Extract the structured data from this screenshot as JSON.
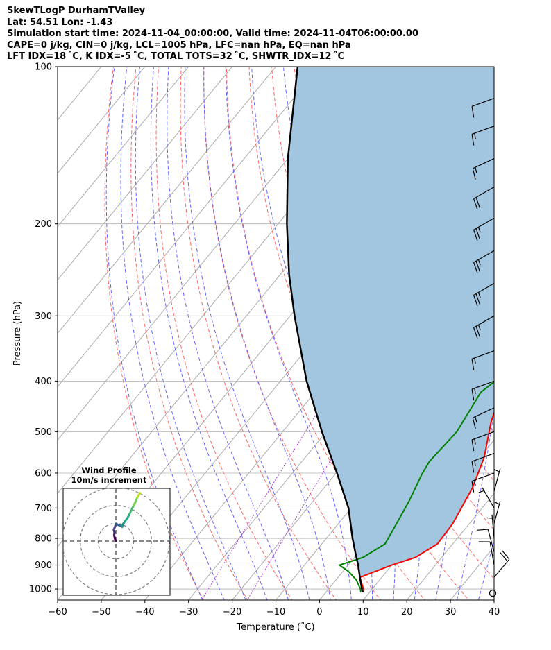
{
  "header": {
    "line1": "SkewTLogP DurhamTValley",
    "line2": "Lat: 54.51   Lon: -1.43",
    "line3": "Simulation start time: 2024-11-04_00:00:00, Valid time: 2024-11-04T06:00:00.00",
    "line4": "CAPE=0 j/kg, CIN=0 j/kg, LCL=1005 hPa, LFC=nan hPa, EQ=nan hPa",
    "line5": "LFT IDX=18 ˚C, K IDX=-5 ˚C, TOTAL TOTS=32 ˚C, SHWTR_IDX=12 ˚C"
  },
  "chart_data": {
    "type": "skew-t log-p",
    "xlabel": "Temperature (˚C)",
    "ylabel": "Pressure (hPa)",
    "xlim": [
      -60,
      40
    ],
    "ylim": [
      1050,
      100
    ],
    "x_ticks": [
      "−60",
      "−50",
      "−40",
      "−30",
      "−20",
      "−10",
      "0",
      "10",
      "20",
      "30",
      "40"
    ],
    "y_ticks": [
      "100",
      "200",
      "300",
      "400",
      "500",
      "600",
      "700",
      "800",
      "900",
      "1000"
    ],
    "y_tick_values": [
      100,
      200,
      300,
      400,
      500,
      600,
      700,
      800,
      900,
      1000
    ],
    "grid": true,
    "series": [
      {
        "color": "#ff0000",
        "points": [
          [
            1015,
            8.5
          ],
          [
            1000,
            8.0
          ],
          [
            950,
            5.0
          ],
          [
            900,
            10.0
          ],
          [
            870,
            14.0
          ],
          [
            820,
            16.5
          ],
          [
            750,
            16.2
          ],
          [
            640,
            14.0
          ],
          [
            560,
            11.0
          ],
          [
            480,
            6.0
          ],
          [
            400,
            1.3
          ],
          [
            320,
            -0.6
          ],
          [
            270,
            -1.2
          ],
          [
            240,
            -1.3
          ],
          [
            220,
            -1.0
          ],
          [
            200,
            -0.3
          ],
          [
            175,
            2.0
          ],
          [
            155,
            5.0
          ],
          [
            135,
            8.0
          ],
          [
            115,
            13.0
          ],
          [
            100,
            17.0
          ]
        ]
      },
      {
        "color": "#008000",
        "points": [
          [
            1015,
            8.0
          ],
          [
            1000,
            7.3
          ],
          [
            960,
            4.6
          ],
          [
            925,
            1.2
          ],
          [
            900,
            -2.0
          ],
          [
            870,
            2.0
          ],
          [
            820,
            4.5
          ],
          [
            760,
            3.5
          ],
          [
            680,
            2.0
          ],
          [
            600,
            -0.2
          ],
          [
            570,
            -0.8
          ],
          [
            500,
            -0.1
          ],
          [
            420,
            -2.0
          ],
          [
            390,
            -0.2
          ],
          [
            360,
            1.5
          ],
          [
            300,
            3.0
          ],
          [
            260,
            5.0
          ],
          [
            230,
            3.0
          ],
          [
            205,
            2.0
          ],
          [
            185,
            -0.5
          ],
          [
            160,
            -4.5
          ],
          [
            135,
            -11.0
          ],
          [
            115,
            -16.5
          ],
          [
            100,
            -19.0
          ]
        ]
      },
      {
        "color": "#000000",
        "points": [
          [
            1015,
            8.5
          ],
          [
            1005,
            7.9
          ],
          [
            950,
            5.0
          ],
          [
            900,
            2.3
          ],
          [
            850,
            -0.8
          ],
          [
            800,
            -4.0
          ],
          [
            700,
            -10.6
          ],
          [
            600,
            -19.8
          ],
          [
            500,
            -31.0
          ],
          [
            400,
            -44.0
          ],
          [
            300,
            -59.0
          ],
          [
            250,
            -68.0
          ],
          [
            200,
            -78.0
          ],
          [
            150,
            -90.0
          ],
          [
            100,
            -105.0
          ]
        ]
      }
    ],
    "shading_color": "#a3c6e0",
    "isotherm_color": "#aaaaaa",
    "dry_adiabat_color": "#ff6464",
    "moist_adiabat_color": "#6464ff",
    "mixing_ratio_color": "#b040d0",
    "wind_barbs": [
      {
        "p": 1000,
        "speed_kt": 0
      },
      {
        "p": 950,
        "speed_kt": 20,
        "dir": 40
      },
      {
        "p": 900,
        "speed_kt": 10,
        "dir": 350
      },
      {
        "p": 850,
        "speed_kt": 10,
        "dir": 345
      },
      {
        "p": 800,
        "speed_kt": 5,
        "dir": 355
      },
      {
        "p": 750,
        "speed_kt": 5,
        "dir": 15
      },
      {
        "p": 700,
        "speed_kt": 5,
        "dir": 330
      },
      {
        "p": 650,
        "speed_kt": 5,
        "dir": 15
      },
      {
        "p": 600,
        "speed_kt": 15,
        "dir": 250
      },
      {
        "p": 550,
        "speed_kt": 15,
        "dir": 250
      },
      {
        "p": 500,
        "speed_kt": 15,
        "dir": 250
      },
      {
        "p": 450,
        "speed_kt": 15,
        "dir": 245
      },
      {
        "p": 400,
        "speed_kt": 15,
        "dir": 250
      },
      {
        "p": 350,
        "speed_kt": 15,
        "dir": 250
      },
      {
        "p": 300,
        "speed_kt": 25,
        "dir": 240
      },
      {
        "p": 260,
        "speed_kt": 25,
        "dir": 240
      },
      {
        "p": 225,
        "speed_kt": 25,
        "dir": 240
      },
      {
        "p": 195,
        "speed_kt": 25,
        "dir": 240
      },
      {
        "p": 170,
        "speed_kt": 20,
        "dir": 240
      },
      {
        "p": 150,
        "speed_kt": 15,
        "dir": 245
      },
      {
        "p": 130,
        "speed_kt": 15,
        "dir": 250
      },
      {
        "p": 115,
        "speed_kt": 10,
        "dir": 250
      }
    ],
    "hodograph": {
      "title": "Wind Profile",
      "subtitle": "10m/s increment",
      "rings_ms": [
        10,
        20,
        30
      ],
      "limit_ms": 30,
      "points": [
        [
          0.0,
          0.0
        ],
        [
          -0.6,
          1.5
        ],
        [
          -1.0,
          3.5
        ],
        [
          -0.8,
          5.0
        ],
        [
          -1.2,
          6.5
        ],
        [
          -0.5,
          8.0
        ],
        [
          0.0,
          9.8
        ],
        [
          1.5,
          9.0
        ],
        [
          2.8,
          8.6
        ],
        [
          3.5,
          8.0
        ],
        [
          4.0,
          9.5
        ],
        [
          5.0,
          11.0
        ],
        [
          6.5,
          13.0
        ],
        [
          7.8,
          15.5
        ],
        [
          9.0,
          18.0
        ],
        [
          10.0,
          20.0
        ],
        [
          11.0,
          22.0
        ],
        [
          12.0,
          24.5
        ],
        [
          13.5,
          27.0
        ]
      ]
    }
  }
}
